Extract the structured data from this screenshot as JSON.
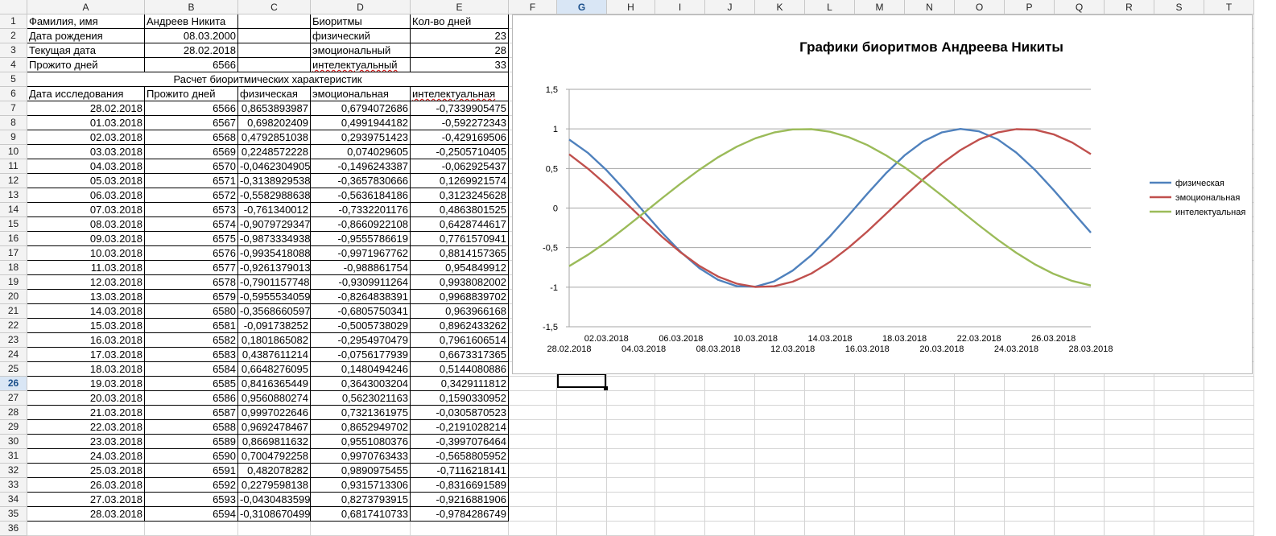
{
  "columns": [
    "A",
    "B",
    "C",
    "D",
    "E",
    "F",
    "G",
    "H",
    "I",
    "J",
    "K",
    "L",
    "M",
    "N",
    "O",
    "P",
    "Q",
    "R",
    "S",
    "T"
  ],
  "selected_column": "G",
  "selected_row": "26",
  "rows": [
    [
      "Фамилия, имя",
      "Андреев Никита",
      "",
      "Биоритмы",
      "Кол-во дней"
    ],
    [
      "Дата рождения",
      "08.03.2000",
      "",
      "физический",
      "23"
    ],
    [
      "Текущая дата",
      "28.02.2018",
      "",
      "эмоциональный",
      "28"
    ],
    [
      "Прожито дней",
      "6566",
      "",
      "интелектуальный",
      "33"
    ],
    [
      "Расчет биоритмических характеристик"
    ],
    [
      "Дата исследования",
      "Прожито дней",
      "физическая",
      "эмоциональная",
      "интелектуальная"
    ],
    [
      "28.02.2018",
      "6566",
      "0,8653893987",
      "0,6794072686",
      "-0,7339905475"
    ],
    [
      "01.03.2018",
      "6567",
      "0,698202409",
      "0,4991944182",
      "-0,592272343"
    ],
    [
      "02.03.2018",
      "6568",
      "0,4792851038",
      "0,2939751423",
      "-0,429169506"
    ],
    [
      "03.03.2018",
      "6569",
      "0,2248572228",
      "0,074029605",
      "-0,2505710405"
    ],
    [
      "04.03.2018",
      "6570",
      "-0,0462304905",
      "-0,1496243387",
      "-0,062925437"
    ],
    [
      "05.03.2018",
      "6571",
      "-0,3138929538",
      "-0,3657830666",
      "0,1269921574"
    ],
    [
      "06.03.2018",
      "6572",
      "-0,5582988638",
      "-0,5636184186",
      "0,3123245628"
    ],
    [
      "07.03.2018",
      "6573",
      "-0,761340012",
      "-0,7332201176",
      "0,4863801525"
    ],
    [
      "08.03.2018",
      "6574",
      "-0,9079729347",
      "-0,8660922108",
      "0,6428744617"
    ],
    [
      "09.03.2018",
      "6575",
      "-0,9873334938",
      "-0,9555786619",
      "0,7761570941"
    ],
    [
      "10.03.2018",
      "6576",
      "-0,9935418088",
      "-0,9971967762",
      "0,8814157365"
    ],
    [
      "11.03.2018",
      "6577",
      "-0,9261379013",
      "-0,988861754",
      "0,954849912"
    ],
    [
      "12.03.2018",
      "6578",
      "-0,7901157748",
      "-0,9309911264",
      "0,9938082002"
    ],
    [
      "13.03.2018",
      "6579",
      "-0,5955534059",
      "-0,8264838391",
      "0,9968839702"
    ],
    [
      "14.03.2018",
      "6580",
      "-0,3568660597",
      "-0,6805750341",
      "0,963966168"
    ],
    [
      "15.03.2018",
      "6581",
      "-0,091738252",
      "-0,5005738029",
      "0,8962433262"
    ],
    [
      "16.03.2018",
      "6582",
      "0,1801865082",
      "-0,2954970479",
      "0,7961606514"
    ],
    [
      "17.03.2018",
      "6583",
      "0,4387611214",
      "-0,0756177939",
      "0,6673317365"
    ],
    [
      "18.03.2018",
      "6584",
      "0,6648276095",
      "0,1480494246",
      "0,5144080886"
    ],
    [
      "19.03.2018",
      "6585",
      "0,8416365449",
      "0,3643003204",
      "0,3429111812"
    ],
    [
      "20.03.2018",
      "6586",
      "0,9560880274",
      "0,5623021163",
      "0,1590330952"
    ],
    [
      "21.03.2018",
      "6587",
      "0,9997022646",
      "0,7321361975",
      "-0,0305870523"
    ],
    [
      "22.03.2018",
      "6588",
      "0,9692478467",
      "0,8652949702",
      "-0,2191028214"
    ],
    [
      "23.03.2018",
      "6589",
      "0,8669811632",
      "0,9551080376",
      "-0,3997076464"
    ],
    [
      "24.03.2018",
      "6590",
      "0,7004792258",
      "0,9970763433",
      "-0,5658805952"
    ],
    [
      "25.03.2018",
      "6591",
      "0,482078282",
      "0,9890975455",
      "-0,7116218141"
    ],
    [
      "26.03.2018",
      "6592",
      "0,2279598138",
      "0,9315713306",
      "-0,8316691589"
    ],
    [
      "27.03.2018",
      "6593",
      "-0,0430483599",
      "0,8273793915",
      "-0,9216881906"
    ],
    [
      "28.03.2018",
      "6594",
      "-0,3108670499",
      "0,6817410733",
      "-0,9784286749"
    ]
  ],
  "chart_data": {
    "type": "line",
    "title": "Графики биоритмов Андреева Никиты",
    "xlabel": "",
    "ylabel": "",
    "ylim": [
      -1.5,
      1.5
    ],
    "y_ticks": [
      "1,5",
      "1",
      "0,5",
      "0",
      "-0,5",
      "-1",
      "-1,5"
    ],
    "grid": true,
    "legend_position": "right",
    "categories": [
      "28.02.2018",
      "01.03.2018",
      "02.03.2018",
      "03.03.2018",
      "04.03.2018",
      "05.03.2018",
      "06.03.2018",
      "07.03.2018",
      "08.03.2018",
      "09.03.2018",
      "10.03.2018",
      "11.03.2018",
      "12.03.2018",
      "13.03.2018",
      "14.03.2018",
      "15.03.2018",
      "16.03.2018",
      "17.03.2018",
      "18.03.2018",
      "19.03.2018",
      "20.03.2018",
      "21.03.2018",
      "22.03.2018",
      "23.03.2018",
      "24.03.2018",
      "25.03.2018",
      "26.03.2018",
      "27.03.2018",
      "28.03.2018"
    ],
    "series": [
      {
        "name": "физическая",
        "color": "#4f81bd",
        "values": [
          0.8653893987,
          0.698202409,
          0.4792851038,
          0.2248572228,
          -0.0462304905,
          -0.3138929538,
          -0.5582988638,
          -0.761340012,
          -0.9079729347,
          -0.9873334938,
          -0.9935418088,
          -0.9261379013,
          -0.7901157748,
          -0.5955534059,
          -0.3568660597,
          -0.091738252,
          0.1801865082,
          0.4387611214,
          0.6648276095,
          0.8416365449,
          0.9560880274,
          0.9997022646,
          0.9692478467,
          0.8669811632,
          0.7004792258,
          0.482078282,
          0.2279598138,
          -0.0430483599,
          -0.3108670499
        ]
      },
      {
        "name": "эмоциональная",
        "color": "#c0504d",
        "values": [
          0.6794072686,
          0.4991944182,
          0.2939751423,
          0.074029605,
          -0.1496243387,
          -0.3657830666,
          -0.5636184186,
          -0.7332201176,
          -0.8660922108,
          -0.9555786619,
          -0.9971967762,
          -0.988861754,
          -0.9309911264,
          -0.8264838391,
          -0.6805750341,
          -0.5005738029,
          -0.2954970479,
          -0.0756177939,
          0.1480494246,
          0.3643003204,
          0.5623021163,
          0.7321361975,
          0.8652949702,
          0.9551080376,
          0.9970763433,
          0.9890975455,
          0.9315713306,
          0.8273793915,
          0.6817410733
        ]
      },
      {
        "name": "интелектуальная",
        "color": "#9bbb59",
        "values": [
          -0.7339905475,
          -0.592272343,
          -0.429169506,
          -0.2505710405,
          -0.062925437,
          0.1269921574,
          0.3123245628,
          0.4863801525,
          0.6428744617,
          0.7761570941,
          0.8814157365,
          0.954849912,
          0.9938082002,
          0.9968839702,
          0.963966168,
          0.8962433262,
          0.7961606514,
          0.6673317365,
          0.5144080886,
          0.3429111812,
          0.1590330952,
          -0.0305870523,
          -0.2191028214,
          -0.3997076464,
          -0.5658805952,
          -0.7116218141,
          -0.8316691589,
          -0.9216881906,
          -0.9784286749
        ]
      }
    ]
  }
}
